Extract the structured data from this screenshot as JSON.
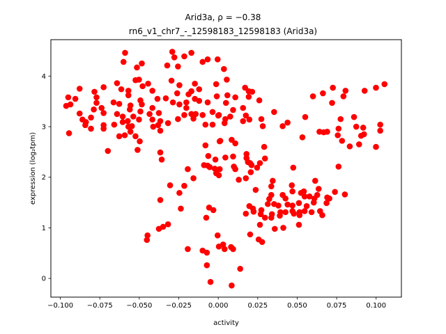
{
  "chart_data": {
    "type": "scatter",
    "title_line1": "Arid3a, ρ = −0.38",
    "title_line2": "rn6_v1_chr7_-_12598183_12598183 (Arid3a)",
    "xlabel": "activity",
    "ylabel": "expression (log₂tpm)",
    "xlim": [
      -0.106,
      0.116
    ],
    "ylim": [
      -0.37,
      4.72
    ],
    "xticks": [
      -0.1,
      -0.075,
      -0.05,
      -0.025,
      0.0,
      0.025,
      0.05,
      0.075,
      0.1
    ],
    "xtick_labels": [
      "−0.100",
      "−0.075",
      "−0.050",
      "−0.025",
      "0.000",
      "0.025",
      "0.050",
      "0.075",
      "0.100"
    ],
    "yticks": [
      0,
      1,
      2,
      3,
      4
    ],
    "ytick_labels": [
      "0",
      "1",
      "2",
      "3",
      "4"
    ],
    "grid": false,
    "marker_color": "#ff0000",
    "points": [
      [
        -0.059,
        4.46
      ],
      [
        -0.06,
        4.28
      ],
      [
        -0.0515,
        4.17
      ],
      [
        -0.0484,
        4.25
      ],
      [
        -0.0323,
        4.21
      ],
      [
        -0.0291,
        4.48
      ],
      [
        -0.0278,
        4.37
      ],
      [
        -0.0255,
        4.19
      ],
      [
        -0.0215,
        4.39
      ],
      [
        -0.017,
        4.46
      ],
      [
        -0.0099,
        4.28
      ],
      [
        -0.0067,
        4.33
      ],
      [
        -0.0004,
        4.33
      ],
      [
        -0.0524,
        3.92
      ],
      [
        -0.0502,
        3.93
      ],
      [
        -0.0479,
        3.8
      ],
      [
        -0.0444,
        3.85
      ],
      [
        -0.0417,
        3.71
      ],
      [
        -0.0296,
        3.91
      ],
      [
        -0.0246,
        3.82
      ],
      [
        -0.0148,
        3.85
      ],
      [
        -0.0121,
        3.74
      ],
      [
        -0.0013,
        3.84
      ],
      [
        -0.0641,
        3.86
      ],
      [
        -0.0726,
        3.78
      ],
      [
        -0.0878,
        3.75
      ],
      [
        -0.0784,
        3.69
      ],
      [
        -0.0614,
        3.74
      ],
      [
        -0.0569,
        3.71
      ],
      [
        -0.0569,
        3.62
      ],
      [
        -0.026,
        3.66
      ],
      [
        -0.0188,
        3.64
      ],
      [
        -0.017,
        3.7
      ],
      [
        -0.0009,
        3.6
      ],
      [
        -0.095,
        3.58
      ],
      [
        -0.0905,
        3.55
      ],
      [
        -0.0771,
        3.58
      ],
      [
        -0.0963,
        3.41
      ],
      [
        -0.0936,
        3.44
      ],
      [
        -0.0771,
        3.47
      ],
      [
        -0.0663,
        3.48
      ],
      [
        -0.0627,
        3.45
      ],
      [
        -0.0556,
        3.42
      ],
      [
        -0.0493,
        3.52
      ],
      [
        -0.0484,
        3.44
      ],
      [
        -0.0385,
        3.55
      ],
      [
        -0.0332,
        3.56
      ],
      [
        -0.0287,
        3.48
      ],
      [
        -0.0246,
        3.44
      ],
      [
        -0.0202,
        3.48
      ],
      [
        -0.0148,
        3.55
      ],
      [
        -0.0121,
        3.51
      ],
      [
        -0.0067,
        3.48
      ],
      [
        -0.0788,
        3.34
      ],
      [
        -0.0739,
        3.37
      ],
      [
        -0.0726,
        3.27
      ],
      [
        -0.0878,
        3.26
      ],
      [
        -0.0641,
        3.25
      ],
      [
        -0.056,
        3.34
      ],
      [
        -0.0493,
        3.3
      ],
      [
        -0.0417,
        3.37
      ],
      [
        -0.0376,
        3.27
      ],
      [
        -0.0435,
        3.25
      ],
      [
        -0.0202,
        3.37
      ],
      [
        -0.0215,
        3.23
      ],
      [
        -0.017,
        3.25
      ],
      [
        -0.0143,
        3.25
      ],
      [
        -0.0099,
        3.23
      ],
      [
        -0.0036,
        3.29
      ],
      [
        0.0004,
        3.23
      ],
      [
        -0.086,
        3.14
      ],
      [
        -0.0806,
        3.18
      ],
      [
        -0.0838,
        3.09
      ],
      [
        -0.0842,
        3.03
      ],
      [
        -0.0806,
        2.96
      ],
      [
        -0.0726,
        3.03
      ],
      [
        -0.0726,
        2.96
      ],
      [
        -0.0659,
        3.04
      ],
      [
        -0.0605,
        3.2
      ],
      [
        -0.0573,
        3.11
      ],
      [
        -0.0538,
        3.2
      ],
      [
        -0.0502,
        3.14
      ],
      [
        -0.0605,
        3.09
      ],
      [
        -0.0569,
        3.0
      ],
      [
        -0.0547,
        3.01
      ],
      [
        -0.0556,
        2.9
      ],
      [
        -0.0417,
        3.14
      ],
      [
        -0.0412,
        3.0
      ],
      [
        -0.0381,
        3.03
      ],
      [
        -0.0367,
        3.11
      ],
      [
        -0.0367,
        2.92
      ],
      [
        -0.0318,
        3.07
      ],
      [
        -0.0255,
        3.15
      ],
      [
        -0.0157,
        3.16
      ],
      [
        -0.0081,
        3.04
      ],
      [
        -0.0036,
        3.04
      ],
      [
        -0.0945,
        2.87
      ],
      [
        -0.0627,
        2.81
      ],
      [
        -0.0592,
        2.83
      ],
      [
        -0.0524,
        2.81
      ],
      [
        -0.0497,
        2.71
      ],
      [
        -0.0699,
        2.52
      ],
      [
        -0.0511,
        2.54
      ],
      [
        -0.0367,
        2.49
      ],
      [
        -0.0358,
        2.35
      ],
      [
        -0.0193,
        2.16
      ],
      [
        -0.0081,
        2.63
      ],
      [
        -0.0063,
        2.42
      ],
      [
        -0.0018,
        2.35
      ],
      [
        0.0009,
        2.71
      ],
      [
        -0.009,
        2.24
      ],
      [
        -0.0054,
        2.2
      ],
      [
        -0.0022,
        2.17
      ],
      [
        0.0036,
        4.14
      ],
      [
        0.0054,
        3.93
      ],
      [
        0.0058,
        3.62
      ],
      [
        0.0108,
        3.58
      ],
      [
        0.017,
        3.77
      ],
      [
        0.0193,
        3.7
      ],
      [
        0.0215,
        3.69
      ],
      [
        0.0193,
        3.59
      ],
      [
        0.026,
        3.52
      ],
      [
        0.0049,
        3.47
      ],
      [
        0.0094,
        3.33
      ],
      [
        0.0157,
        3.37
      ],
      [
        0.0,
        3.22
      ],
      [
        0.0045,
        3.15
      ],
      [
        0.0076,
        3.2
      ],
      [
        0.0175,
        3.22
      ],
      [
        0.0197,
        3.14
      ],
      [
        0.0157,
        3.11
      ],
      [
        0.0273,
        3.15
      ],
      [
        0.0282,
        3.01
      ],
      [
        0.0354,
        3.29
      ],
      [
        0.004,
        3.07
      ],
      [
        0.0408,
        3.01
      ],
      [
        0.0439,
        3.08
      ],
      [
        0.0551,
        3.19
      ],
      [
        0.06,
        3.6
      ],
      [
        0.0663,
        3.66
      ],
      [
        0.0726,
        3.77
      ],
      [
        0.0721,
        3.47
      ],
      [
        0.0806,
        3.71
      ],
      [
        0.0793,
        3.6
      ],
      [
        0.0927,
        3.71
      ],
      [
        0.0999,
        3.77
      ],
      [
        0.1053,
        3.84
      ],
      [
        0.0775,
        3.15
      ],
      [
        0.086,
        3.19
      ],
      [
        0.0874,
        3.0
      ],
      [
        0.0918,
        2.98
      ],
      [
        0.1026,
        3.04
      ],
      [
        0.1026,
        2.92
      ],
      [
        0.0641,
        2.9
      ],
      [
        0.0668,
        2.89
      ],
      [
        0.069,
        2.9
      ],
      [
        0.0762,
        2.96
      ],
      [
        0.0757,
        2.83
      ],
      [
        0.0784,
        2.72
      ],
      [
        0.0905,
        2.82
      ],
      [
        0.0923,
        2.85
      ],
      [
        0.0892,
        2.65
      ],
      [
        0.0833,
        2.61
      ],
      [
        0.0999,
        2.6
      ],
      [
        0.0533,
        2.79
      ],
      [
        0.0013,
        2.72
      ],
      [
        0.0085,
        2.74
      ],
      [
        0.0108,
        2.67
      ],
      [
        0.0291,
        2.6
      ],
      [
        0.0045,
        2.39
      ],
      [
        0.0094,
        2.41
      ],
      [
        0.0179,
        2.46
      ],
      [
        0.0179,
        2.38
      ],
      [
        0.0202,
        2.28
      ],
      [
        0.0264,
        2.28
      ],
      [
        0.0296,
        2.37
      ],
      [
        0.0246,
        2.19
      ],
      [
        0.0475,
        2.19
      ],
      [
        0.0762,
        2.21
      ],
      [
        0.0099,
        2.21
      ],
      [
        -0.0157,
        1.98
      ],
      [
        -0.0305,
        1.84
      ],
      [
        -0.0215,
        1.83
      ],
      [
        -0.0246,
        1.69
      ],
      [
        -0.0367,
        1.55
      ],
      [
        -0.0237,
        1.38
      ],
      [
        -0.0058,
        1.4
      ],
      [
        -0.0031,
        1.35
      ],
      [
        -0.0076,
        1.2
      ],
      [
        -0.0376,
        0.98
      ],
      [
        -0.0349,
        1.02
      ],
      [
        -0.0318,
        1.07
      ],
      [
        -0.0448,
        0.85
      ],
      [
        -0.0452,
        0.76
      ],
      [
        -0.0004,
        0.85
      ],
      [
        0.0004,
        0.63
      ],
      [
        -0.0193,
        0.58
      ],
      [
        -0.0099,
        0.55
      ],
      [
        -0.0072,
        0.51
      ],
      [
        -0.0072,
        0.26
      ],
      [
        -0.0049,
        -0.07
      ],
      [
        -0.0013,
        2.08
      ],
      [
        0.0004,
        2.04
      ],
      [
        -0.0067,
        2.23
      ],
      [
        0.0009,
        2.16
      ],
      [
        0.0108,
        2.16
      ],
      [
        0.0188,
        2.3
      ],
      [
        0.0211,
        2.24
      ],
      [
        0.0206,
        2.1
      ],
      [
        0.013,
        1.95
      ],
      [
        0.0175,
        1.98
      ],
      [
        0.0345,
        1.93
      ],
      [
        0.0336,
        1.82
      ],
      [
        0.0237,
        1.75
      ],
      [
        0.0466,
        1.84
      ],
      [
        0.047,
        1.72
      ],
      [
        0.0614,
        1.93
      ],
      [
        0.0636,
        1.77
      ],
      [
        0.0739,
        1.71
      ],
      [
        0.0802,
        1.66
      ],
      [
        0.0336,
        1.65
      ],
      [
        0.0323,
        1.57
      ],
      [
        0.0408,
        1.65
      ],
      [
        0.0426,
        1.58
      ],
      [
        0.0524,
        1.69
      ],
      [
        0.0542,
        1.72
      ],
      [
        0.0547,
        1.62
      ],
      [
        0.0578,
        1.62
      ],
      [
        0.0627,
        1.65
      ],
      [
        0.0609,
        1.58
      ],
      [
        0.0605,
        1.5
      ],
      [
        0.069,
        1.6
      ],
      [
        0.0704,
        1.58
      ],
      [
        0.0686,
        1.49
      ],
      [
        0.0197,
        1.43
      ],
      [
        0.022,
        1.38
      ],
      [
        0.0224,
        1.32
      ],
      [
        0.0175,
        1.28
      ],
      [
        0.0273,
        1.35
      ],
      [
        0.0269,
        1.27
      ],
      [
        0.0296,
        1.2
      ],
      [
        0.0314,
        1.47
      ],
      [
        0.0354,
        1.47
      ],
      [
        0.0381,
        1.44
      ],
      [
        0.034,
        1.27
      ],
      [
        0.0336,
        1.2
      ],
      [
        0.0394,
        1.31
      ],
      [
        0.039,
        1.24
      ],
      [
        0.0426,
        1.31
      ],
      [
        0.0439,
        1.46
      ],
      [
        0.047,
        1.44
      ],
      [
        0.047,
        1.33
      ],
      [
        0.0479,
        1.28
      ],
      [
        0.0511,
        1.49
      ],
      [
        0.0515,
        1.31
      ],
      [
        0.0515,
        1.25
      ],
      [
        0.056,
        1.43
      ],
      [
        0.0547,
        1.33
      ],
      [
        0.0591,
        1.31
      ],
      [
        0.0645,
        1.33
      ],
      [
        0.0659,
        1.25
      ],
      [
        0.0264,
        1.06
      ],
      [
        0.0358,
        0.98
      ],
      [
        0.0412,
        1.0
      ],
      [
        0.0511,
        1.06
      ],
      [
        0.0031,
        0.67
      ],
      [
        0.004,
        0.58
      ],
      [
        0.0081,
        0.62
      ],
      [
        0.0094,
        0.58
      ],
      [
        0.0202,
        0.87
      ],
      [
        0.0256,
        0.77
      ],
      [
        0.0278,
        0.72
      ],
      [
        0.0139,
        0.19
      ],
      [
        0.0085,
        -0.14
      ]
    ]
  }
}
